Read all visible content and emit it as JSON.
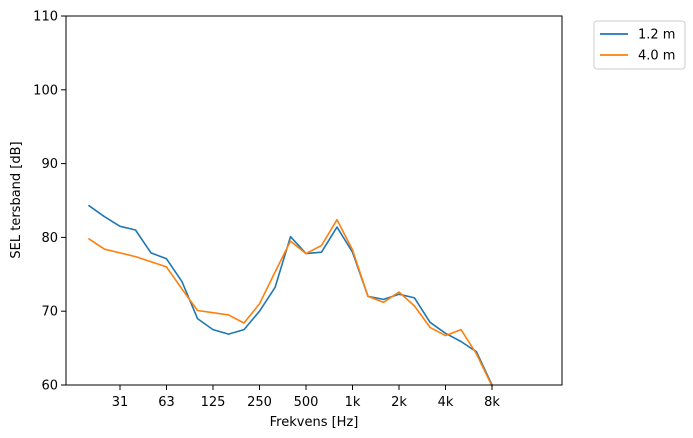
{
  "chart_data": {
    "type": "line",
    "xlabel": "Frekvens [Hz]",
    "ylabel": "SEL tersband [dB]",
    "ylim": [
      60,
      110
    ],
    "yticks": [
      "60",
      "70",
      "80",
      "90",
      "100",
      "110"
    ],
    "xticks": [
      "31",
      "63",
      "125",
      "250",
      "500",
      "1k",
      "2k",
      "4k",
      "8k"
    ],
    "x_band_index_range": [
      0,
      32
    ],
    "grid": false,
    "legend_position": "outside upper right",
    "series": [
      {
        "name": "1.2 m",
        "color": "#1f77b4",
        "x": [
          0,
          1,
          2,
          3,
          4,
          5,
          6,
          7,
          8,
          9,
          10,
          11,
          12,
          13,
          14,
          15,
          16,
          17,
          18,
          19,
          20,
          21,
          22,
          23,
          24,
          25,
          26
        ],
        "values": [
          84.3,
          82.8,
          81.5,
          81.0,
          77.9,
          77.1,
          74.0,
          69.0,
          67.5,
          66.9,
          67.5,
          70.0,
          73.2,
          80.1,
          77.8,
          78.0,
          81.4,
          78.0,
          72.0,
          71.6,
          72.3,
          71.8,
          68.5,
          67.0,
          65.9,
          64.5,
          60.0
        ]
      },
      {
        "name": "4.0 m",
        "color": "#ff7f0e",
        "x": [
          0,
          1,
          2,
          3,
          4,
          5,
          6,
          7,
          8,
          9,
          10,
          11,
          12,
          13,
          14,
          15,
          16,
          17,
          18,
          19,
          20,
          21,
          22,
          23,
          24,
          25,
          26
        ],
        "values": [
          79.8,
          78.4,
          77.9,
          77.4,
          76.7,
          76.0,
          73.0,
          70.1,
          69.8,
          69.5,
          68.4,
          71.0,
          75.3,
          79.5,
          77.8,
          78.9,
          82.4,
          78.3,
          72.0,
          71.2,
          72.6,
          70.7,
          67.8,
          66.7,
          67.5,
          64.2,
          59.8
        ]
      }
    ]
  }
}
